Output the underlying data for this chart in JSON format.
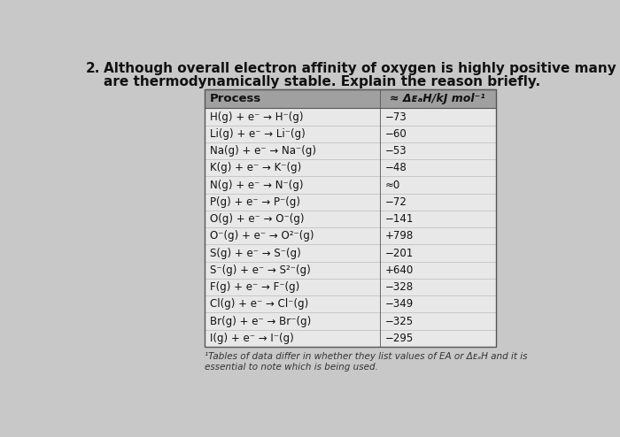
{
  "title_num": "2.",
  "title_line1": "Although overall electron affinity of oxygen is highly positive many metal oxides with ionic lattice",
  "title_line2": "are thermodynamically stable. Explain the reason briefly.",
  "header_process": "Process",
  "header_value": "≈ ΔᴇₐH/kJ mol⁻¹",
  "rows": [
    [
      "H(g) + e⁻ → H⁻(g)",
      "−73"
    ],
    [
      "Li(g) + e⁻ → Li⁻(g)",
      "−60"
    ],
    [
      "Na(g) + e⁻ → Na⁻(g)",
      "−53"
    ],
    [
      "K(g) + e⁻ → K⁻(g)",
      "−48"
    ],
    [
      "N(g) + e⁻ → N⁻(g)",
      "≈0"
    ],
    [
      "P(g) + e⁻ → P⁻(g)",
      "−72"
    ],
    [
      "O(g) + e⁻ → O⁻(g)",
      "−141"
    ],
    [
      "O⁻(g) + e⁻ → O²⁻(g)",
      "+798"
    ],
    [
      "S(g) + e⁻ → S⁻(g)",
      "−201"
    ],
    [
      "S⁻(g) + e⁻ → S²⁻(g)",
      "+640"
    ],
    [
      "F(g) + e⁻ → F⁻(g)",
      "−328"
    ],
    [
      "Cl(g) + e⁻ → Cl⁻(g)",
      "−349"
    ],
    [
      "Br(g) + e⁻ → Br⁻(g)",
      "−325"
    ],
    [
      "I(g) + e⁻ → I⁻(g)",
      "−295"
    ]
  ],
  "footnote": "¹Tables of data differ in whether they list values of EA or ΔᴇₐH and it is\nessential to note which is being used.",
  "bg_color": "#c8c8c8",
  "header_bg": "#a0a0a0",
  "row_bg": "#e8e8e8",
  "text_color": "#111111",
  "header_text_color": "#111111",
  "figsize": [
    7.0,
    4.94
  ],
  "dpi": 100
}
